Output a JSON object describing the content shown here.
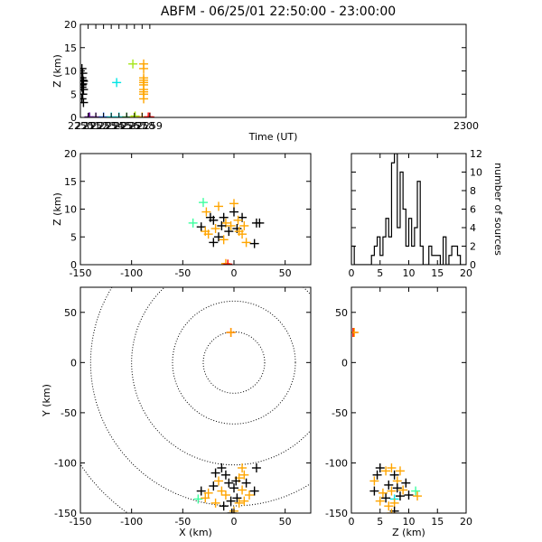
{
  "title": "ABFM - 06/25/01 22:50:00 - 23:00:00",
  "colors": {
    "black": "#000000",
    "orange": "#ffa500",
    "red": "#ff0000",
    "purple": "#6a1b9a",
    "blue": "#1565ff",
    "cyan": "#00e5e5",
    "mint": "#3dffa0",
    "green": "#2e9e2e",
    "yellowgreen": "#a6e61a",
    "yellow": "#f0e000"
  },
  "chart_data": [
    {
      "id": "time-height",
      "type": "scatter",
      "xlabel": "Time (UT)",
      "ylabel": "Z (km)",
      "xlim": [
        2250,
        2300
      ],
      "ylim": [
        0,
        20
      ],
      "xticks": [
        "2250",
        "2251",
        "2252",
        "2253",
        "2254",
        "2255",
        "2256",
        "2257",
        "2258",
        "2259",
        "2300"
      ],
      "yticks": [
        0,
        5,
        10,
        15,
        20
      ],
      "marker": "plus",
      "points": [
        {
          "x": 2250.2,
          "y": 10.5,
          "c": "black"
        },
        {
          "x": 2250.3,
          "y": 9.5,
          "c": "black"
        },
        {
          "x": 2250.2,
          "y": 8.5,
          "c": "black"
        },
        {
          "x": 2250.4,
          "y": 7.8,
          "c": "black"
        },
        {
          "x": 2250.3,
          "y": 7.2,
          "c": "black"
        },
        {
          "x": 2250.2,
          "y": 6.5,
          "c": "black"
        },
        {
          "x": 2250.4,
          "y": 6.0,
          "c": "black"
        },
        {
          "x": 2250.3,
          "y": 5.0,
          "c": "black"
        },
        {
          "x": 2250.2,
          "y": 4.0,
          "c": "black"
        },
        {
          "x": 2250.4,
          "y": 3.2,
          "c": "black"
        },
        {
          "x": 2250.3,
          "y": 8.0,
          "c": "black"
        },
        {
          "x": 2250.2,
          "y": 7.0,
          "c": "black"
        },
        {
          "x": 2251.1,
          "y": 0.1,
          "c": "purple"
        },
        {
          "x": 2251.2,
          "y": 0.1,
          "c": "purple"
        },
        {
          "x": 2252.0,
          "y": 0.1,
          "c": "purple"
        },
        {
          "x": 2253.0,
          "y": 0.1,
          "c": "blue"
        },
        {
          "x": 2254.0,
          "y": 0.1,
          "c": "cyan"
        },
        {
          "x": 2254.7,
          "y": 7.5,
          "c": "cyan"
        },
        {
          "x": 2255.0,
          "y": 0.1,
          "c": "cyan"
        },
        {
          "x": 2256.0,
          "y": 0.1,
          "c": "green"
        },
        {
          "x": 2256.8,
          "y": 11.5,
          "c": "yellowgreen"
        },
        {
          "x": 2257.0,
          "y": 0.1,
          "c": "yellow"
        },
        {
          "x": 2257.1,
          "y": 0.3,
          "c": "yellowgreen"
        },
        {
          "x": 2258.0,
          "y": 0.1,
          "c": "orange"
        },
        {
          "x": 2258.2,
          "y": 11.5,
          "c": "orange"
        },
        {
          "x": 2258.2,
          "y": 10.5,
          "c": "orange"
        },
        {
          "x": 2258.2,
          "y": 8.5,
          "c": "orange"
        },
        {
          "x": 2258.2,
          "y": 8.0,
          "c": "orange"
        },
        {
          "x": 2258.2,
          "y": 7.5,
          "c": "orange"
        },
        {
          "x": 2258.2,
          "y": 7.0,
          "c": "orange"
        },
        {
          "x": 2258.2,
          "y": 6.0,
          "c": "orange"
        },
        {
          "x": 2258.2,
          "y": 5.5,
          "c": "orange"
        },
        {
          "x": 2258.2,
          "y": 5.0,
          "c": "orange"
        },
        {
          "x": 2258.2,
          "y": 4.0,
          "c": "orange"
        },
        {
          "x": 2258.8,
          "y": 0.1,
          "c": "red"
        },
        {
          "x": 2259.0,
          "y": 0.1,
          "c": "red"
        }
      ]
    },
    {
      "id": "x-z",
      "type": "scatter",
      "xlabel": "",
      "ylabel": "Z (km)",
      "xlim": [
        -150,
        75
      ],
      "ylim": [
        0,
        20
      ],
      "xticks": [
        "-150",
        "-100",
        "-50",
        "0",
        "50"
      ],
      "yticks": [
        0,
        5,
        10,
        15,
        20
      ],
      "marker": "plus",
      "points": [
        {
          "x": -30,
          "y": 11.2,
          "c": "mint"
        },
        {
          "x": -40,
          "y": 7.5,
          "c": "mint"
        },
        {
          "x": -15,
          "y": 10.5,
          "c": "orange"
        },
        {
          "x": 0,
          "y": 11.0,
          "c": "orange"
        },
        {
          "x": -27,
          "y": 9.5,
          "c": "orange"
        },
        {
          "x": -23,
          "y": 8.5,
          "c": "black"
        },
        {
          "x": -20,
          "y": 8.0,
          "c": "black"
        },
        {
          "x": -10,
          "y": 8.5,
          "c": "black"
        },
        {
          "x": 0,
          "y": 9.5,
          "c": "black"
        },
        {
          "x": 8,
          "y": 8.5,
          "c": "black"
        },
        {
          "x": 4,
          "y": 8.0,
          "c": "orange"
        },
        {
          "x": -8,
          "y": 7.5,
          "c": "orange"
        },
        {
          "x": -32,
          "y": 6.8,
          "c": "black"
        },
        {
          "x": -28,
          "y": 6.0,
          "c": "orange"
        },
        {
          "x": -18,
          "y": 6.5,
          "c": "orange"
        },
        {
          "x": -12,
          "y": 7.0,
          "c": "black"
        },
        {
          "x": -3,
          "y": 7.0,
          "c": "orange"
        },
        {
          "x": 3,
          "y": 6.5,
          "c": "black"
        },
        {
          "x": 10,
          "y": 7.0,
          "c": "orange"
        },
        {
          "x": 22,
          "y": 7.5,
          "c": "black"
        },
        {
          "x": 25,
          "y": 7.5,
          "c": "black"
        },
        {
          "x": -25,
          "y": 5.5,
          "c": "orange"
        },
        {
          "x": -15,
          "y": 5.0,
          "c": "black"
        },
        {
          "x": -20,
          "y": 4.0,
          "c": "black"
        },
        {
          "x": -10,
          "y": 4.5,
          "c": "orange"
        },
        {
          "x": 8,
          "y": 5.5,
          "c": "orange"
        },
        {
          "x": 12,
          "y": 4.0,
          "c": "orange"
        },
        {
          "x": 20,
          "y": 3.8,
          "c": "black"
        },
        {
          "x": -5,
          "y": 6.0,
          "c": "black"
        },
        {
          "x": 5,
          "y": 6.0,
          "c": "orange"
        },
        {
          "x": -8,
          "y": 0.2,
          "c": "orange"
        },
        {
          "x": -6,
          "y": 0.1,
          "c": "red"
        }
      ]
    },
    {
      "id": "z-histogram",
      "type": "bar",
      "xlabel": "",
      "ylabel": "number of sources",
      "xlim": [
        0,
        20
      ],
      "ylim": [
        0,
        12
      ],
      "xticks": [
        "0",
        "5",
        "10",
        "15",
        "20"
      ],
      "yticks": [
        "0",
        "2",
        "4",
        "6",
        "8",
        "10",
        "12"
      ],
      "bin_width": 0.5,
      "bin_start": 0,
      "values": [
        2,
        0,
        0,
        0,
        0,
        0,
        0,
        1,
        2,
        3,
        1,
        3,
        5,
        3,
        11,
        12,
        4,
        10,
        6,
        2,
        5,
        2,
        4,
        9,
        2,
        0,
        0,
        2,
        1,
        1,
        1,
        0,
        3,
        0,
        1,
        2,
        2,
        1,
        0,
        0
      ]
    },
    {
      "id": "x-y",
      "type": "scatter",
      "xlabel": "X (km)",
      "ylabel": "Y (km)",
      "xlim": [
        -150,
        75
      ],
      "ylim": [
        -150,
        75
      ],
      "xticks": [
        "-150",
        "-100",
        "-50",
        "0",
        "50"
      ],
      "yticks": [
        "-150",
        "-100",
        "-50",
        "0",
        "50"
      ],
      "range_rings_km": [
        30,
        60,
        100,
        140,
        180
      ],
      "marker": "plus",
      "points": [
        {
          "x": -3,
          "y": 30,
          "c": "red"
        },
        {
          "x": -3,
          "y": 30,
          "c": "orange"
        },
        {
          "x": -35,
          "y": -136,
          "c": "mint"
        },
        {
          "x": -32,
          "y": -128,
          "c": "black"
        },
        {
          "x": -25,
          "y": -130,
          "c": "orange"
        },
        {
          "x": -18,
          "y": -110,
          "c": "black"
        },
        {
          "x": -12,
          "y": -105,
          "c": "black"
        },
        {
          "x": -8,
          "y": -112,
          "c": "black"
        },
        {
          "x": -5,
          "y": -120,
          "c": "black"
        },
        {
          "x": -15,
          "y": -118,
          "c": "orange"
        },
        {
          "x": -20,
          "y": -123,
          "c": "black"
        },
        {
          "x": -12,
          "y": -128,
          "c": "orange"
        },
        {
          "x": -8,
          "y": -132,
          "c": "orange"
        },
        {
          "x": 0,
          "y": -125,
          "c": "black"
        },
        {
          "x": 5,
          "y": -115,
          "c": "orange"
        },
        {
          "x": 8,
          "y": -105,
          "c": "orange"
        },
        {
          "x": 10,
          "y": -112,
          "c": "orange"
        },
        {
          "x": 12,
          "y": -120,
          "c": "black"
        },
        {
          "x": 8,
          "y": -127,
          "c": "orange"
        },
        {
          "x": 3,
          "y": -135,
          "c": "black"
        },
        {
          "x": -3,
          "y": -138,
          "c": "black"
        },
        {
          "x": 5,
          "y": -140,
          "c": "orange"
        },
        {
          "x": -18,
          "y": -140,
          "c": "orange"
        },
        {
          "x": -10,
          "y": -143,
          "c": "black"
        },
        {
          "x": 15,
          "y": -132,
          "c": "orange"
        },
        {
          "x": 22,
          "y": -105,
          "c": "black"
        },
        {
          "x": 20,
          "y": -128,
          "c": "black"
        },
        {
          "x": 0,
          "y": -148,
          "c": "orange"
        },
        {
          "x": -2,
          "y": -150,
          "c": "black"
        },
        {
          "x": 10,
          "y": -138,
          "c": "orange"
        },
        {
          "x": -28,
          "y": -135,
          "c": "orange"
        },
        {
          "x": 2,
          "y": -118,
          "c": "black"
        }
      ]
    },
    {
      "id": "z-y",
      "type": "scatter",
      "xlabel": "Z (km)",
      "ylabel": "",
      "xlim": [
        0,
        20
      ],
      "ylim": [
        -150,
        75
      ],
      "xticks": [
        "0",
        "5",
        "10",
        "15",
        "20"
      ],
      "yticks": [
        "-150",
        "-100",
        "-50",
        "0",
        "50"
      ],
      "marker": "plus",
      "points": [
        {
          "x": 0.3,
          "y": 30,
          "c": "red"
        },
        {
          "x": 0.5,
          "y": 30,
          "c": "orange"
        },
        {
          "x": 11.2,
          "y": -128,
          "c": "mint"
        },
        {
          "x": 7.5,
          "y": -136,
          "c": "cyan"
        },
        {
          "x": 5,
          "y": -105,
          "c": "black"
        },
        {
          "x": 4.5,
          "y": -112,
          "c": "black"
        },
        {
          "x": 4,
          "y": -118,
          "c": "orange"
        },
        {
          "x": 6,
          "y": -108,
          "c": "orange"
        },
        {
          "x": 7,
          "y": -105,
          "c": "orange"
        },
        {
          "x": 7.5,
          "y": -112,
          "c": "black"
        },
        {
          "x": 8,
          "y": -118,
          "c": "orange"
        },
        {
          "x": 8.5,
          "y": -108,
          "c": "orange"
        },
        {
          "x": 6.5,
          "y": -122,
          "c": "black"
        },
        {
          "x": 7,
          "y": -128,
          "c": "orange"
        },
        {
          "x": 5.5,
          "y": -130,
          "c": "orange"
        },
        {
          "x": 4,
          "y": -128,
          "c": "black"
        },
        {
          "x": 6,
          "y": -135,
          "c": "black"
        },
        {
          "x": 7.5,
          "y": -140,
          "c": "orange"
        },
        {
          "x": 8.5,
          "y": -133,
          "c": "black"
        },
        {
          "x": 9,
          "y": -127,
          "c": "orange"
        },
        {
          "x": 10,
          "y": -132,
          "c": "black"
        },
        {
          "x": 11.5,
          "y": -133,
          "c": "orange"
        },
        {
          "x": 6.5,
          "y": -143,
          "c": "orange"
        },
        {
          "x": 7.5,
          "y": -148,
          "c": "black"
        },
        {
          "x": 8,
          "y": -125,
          "c": "black"
        },
        {
          "x": 5,
          "y": -138,
          "c": "orange"
        },
        {
          "x": 9.5,
          "y": -120,
          "c": "black"
        },
        {
          "x": 7,
          "y": -150,
          "c": "orange"
        }
      ]
    }
  ]
}
